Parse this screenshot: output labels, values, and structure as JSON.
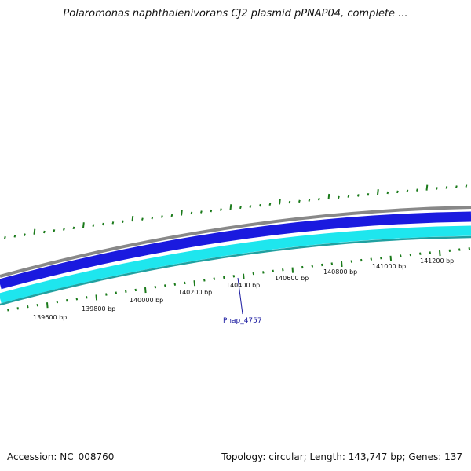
{
  "title": "Polaromonas naphthalenivorans CJ2 plasmid pPNAP04, complete ...",
  "footer": {
    "accession": "Accession: NC_008760",
    "summary": "Topology: circular; Length: 143,747 bp; Genes: 137"
  },
  "colors": {
    "backbone": "#888888",
    "forward_strand": "#1a1adf",
    "reverse_strand": "#1ee6ee",
    "reverse_edge": "#20a0a0",
    "ticks": "#1a7a1a",
    "gene_label": "#1a1aa0"
  },
  "ruler": {
    "labels": [
      "139600 bp",
      "139800 bp",
      "140000 bp",
      "140200 bp",
      "140400 bp",
      "140600 bp",
      "140800 bp",
      "141000 bp",
      "141200 bp"
    ]
  },
  "gene": {
    "label": "Pnap_4757"
  }
}
